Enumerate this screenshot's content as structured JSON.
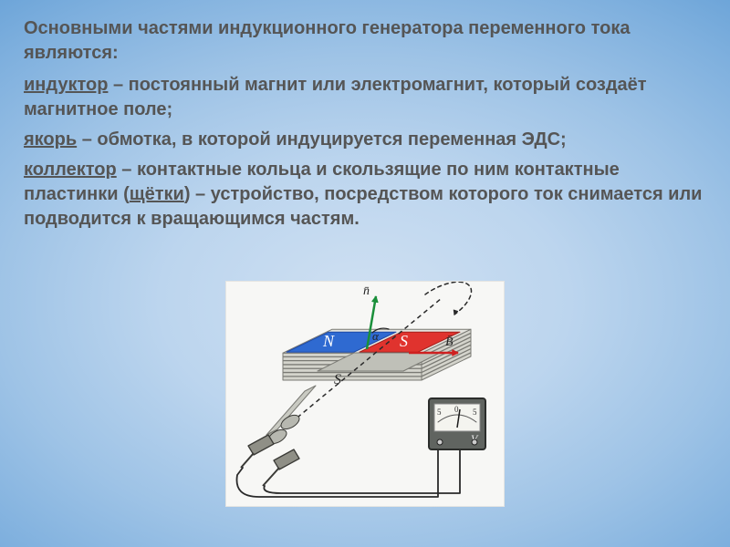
{
  "heading": "Основными частями индукционного генератора переменного тока являются:",
  "paras": [
    {
      "term": "индуктор",
      "rest": " – постоянный магнит или электромагнит, который создаёт магнитное поле;"
    },
    {
      "term": "якорь",
      "rest": " – обмотка, в которой индуцируется переменная ЭДС;"
    },
    {
      "term": "коллектор",
      "rest": " – контактные кольца и скользящие по ним контактные пластинки (",
      "term2": "щётки",
      "rest2": ") – устройство, посредством которого ток снимается или подводится к вращающимся частям."
    }
  ],
  "figure": {
    "type": "diagram",
    "description": "AC induction generator schematic",
    "background_color": "#f7f7f5",
    "core": {
      "n_plates": 7,
      "plate_fill": "#d4d4cc",
      "plate_stroke": "#7a7a74",
      "n_label": "N",
      "n_fill": "#2f6ad1",
      "n_text": "#ffffff",
      "s_label": "S",
      "s_fill": "#e0332e",
      "s_text": "#ffffff",
      "inner_fill": "#bfc0b8"
    },
    "vectors": {
      "n_vec": "n̄",
      "b_vec": "B̄",
      "s_lbl": "S",
      "alpha": "α",
      "arrow_color": "#2a2a2a",
      "b_arrow_color": "#cf2020",
      "n_arrow_color": "#1a8f3a",
      "axis_color": "#2a2a2a"
    },
    "brushes": {
      "fill": "#8f8f86",
      "stroke": "#3a3a36",
      "ring_fill": "#b7b8b0"
    },
    "meter": {
      "case_fill": "#606460",
      "border": "#2b2d2b",
      "dial_fill": "#f4f4ef",
      "needle": "#1a1a1a",
      "scale_left": "5",
      "scale_mid": "0",
      "scale_right": "5",
      "unit": "V"
    },
    "wire_color": "#2a2a2a"
  }
}
